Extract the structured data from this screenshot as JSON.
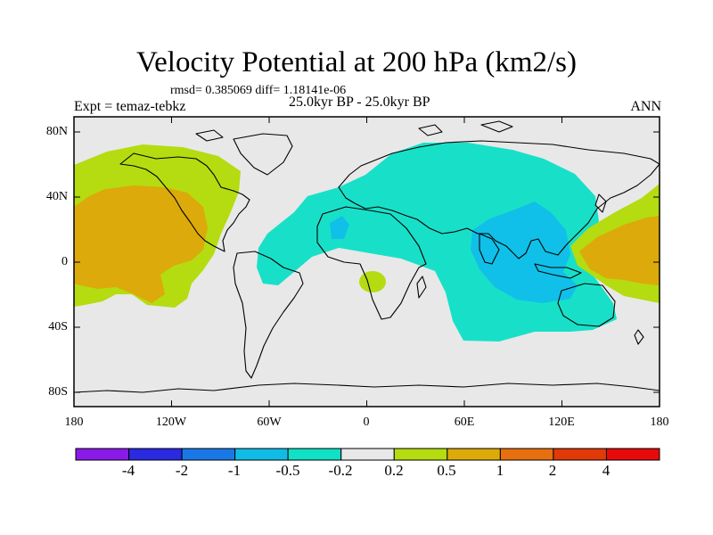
{
  "title": "Velocity Potential at 200 hPa (km2/s)",
  "stats": "rmsd= 0.385069 diff= 1.18141e-06",
  "experiment": "Expt = temaz-tebkz",
  "period": "25.0kyr BP - 25.0kyr BP",
  "season": "ANN",
  "lat_labels": [
    "80N",
    "40N",
    "0",
    "40S",
    "80S"
  ],
  "lon_labels": [
    "180",
    "120W",
    "60W",
    "0",
    "60E",
    "120E",
    "180"
  ],
  "colorbar": {
    "labels": [
      "-4",
      "-2",
      "-1",
      "-0.5",
      "-0.2",
      "0.2",
      "0.5",
      "1",
      "2",
      "4"
    ],
    "colors": [
      "#8a1ae6",
      "#2a2ae0",
      "#1a78e6",
      "#10bce6",
      "#10e0c4",
      "#e8e8e8",
      "#b4dc10",
      "#dcaa0a",
      "#e67010",
      "#e03a08",
      "#e60a0a"
    ]
  },
  "palette": {
    "neutral": "#e8e8e8",
    "neg_small": "#18e0c8",
    "neg_med": "#10c0e8",
    "pos_small": "#b4dc10",
    "pos_med": "#dcaa0a"
  }
}
